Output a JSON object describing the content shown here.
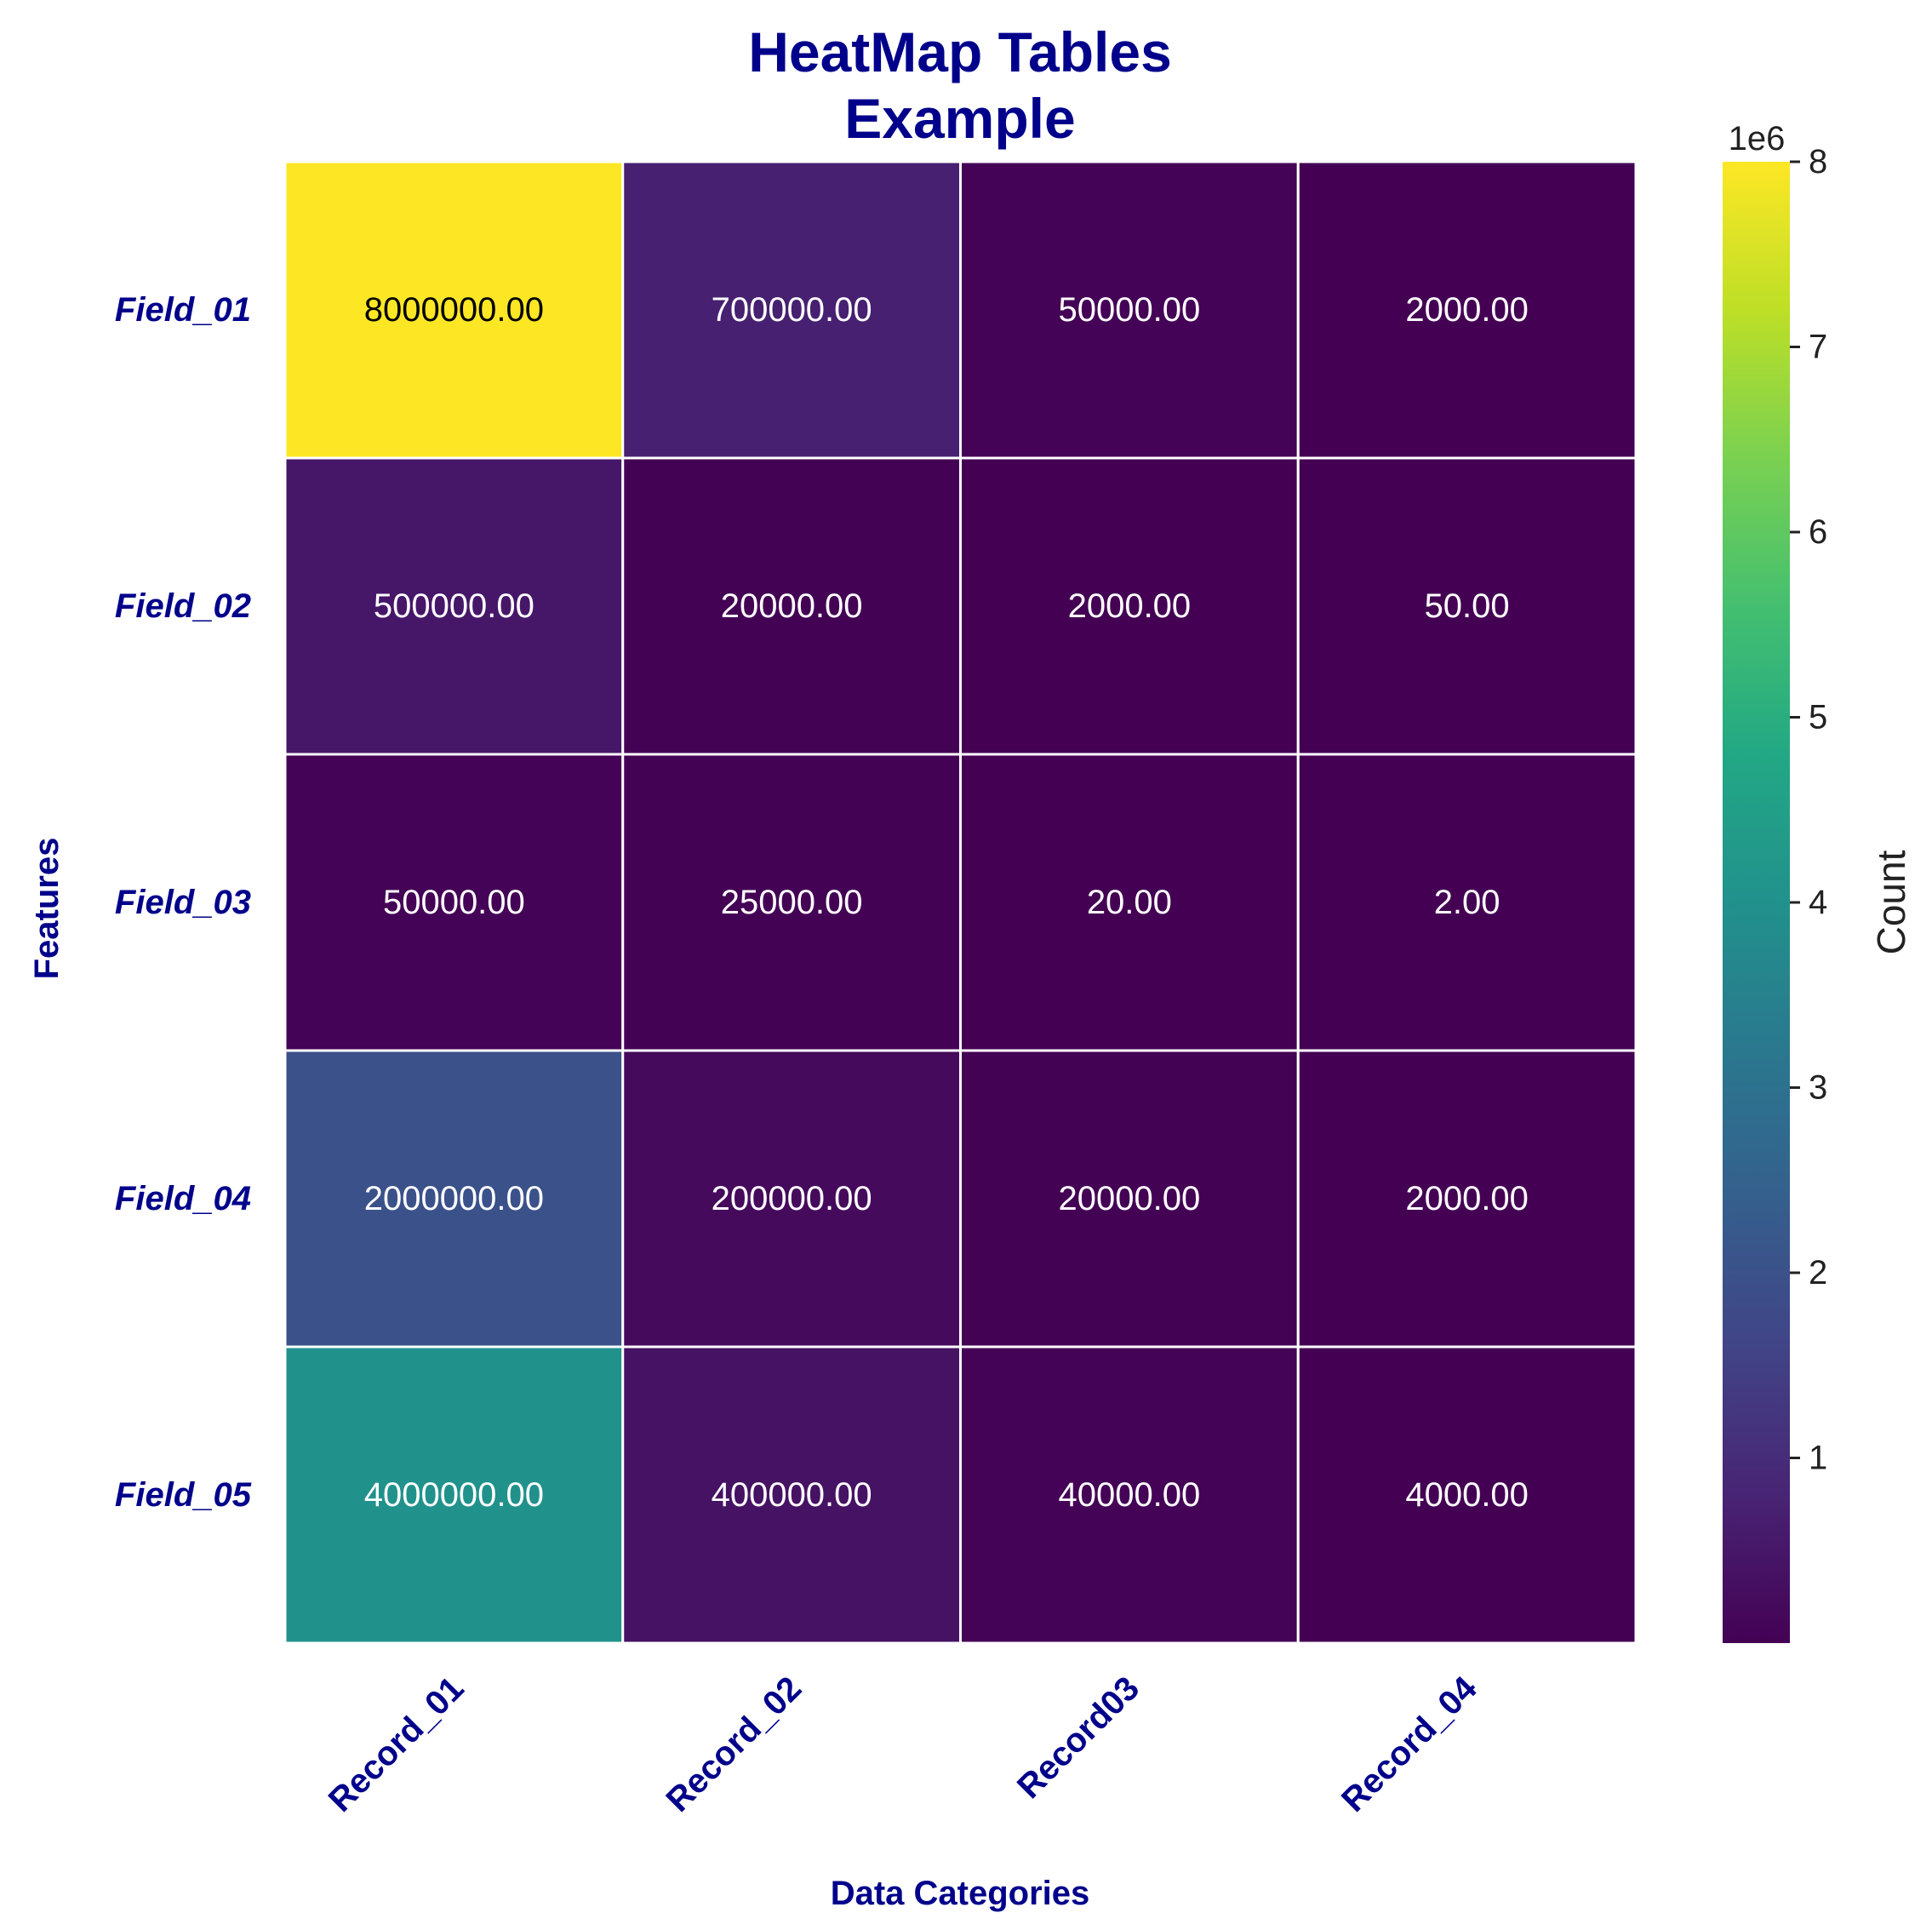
{
  "chart_data": {
    "type": "heatmap",
    "title": [
      "HeatMap Tables",
      "Example"
    ],
    "xlabel": "Data Categories",
    "ylabel": "Features",
    "columns": [
      "Record_01",
      "Record_02",
      "Record03",
      "Record_04"
    ],
    "rows": [
      "Field_01",
      "Field_02",
      "Field_03",
      "Field_04",
      "Field_05"
    ],
    "values": [
      [
        8000000,
        700000,
        50000,
        2000
      ],
      [
        500000,
        20000,
        2000,
        50
      ],
      [
        50000,
        25000,
        20,
        2
      ],
      [
        2000000,
        200000,
        20000,
        2000
      ],
      [
        4000000,
        400000,
        40000,
        4000
      ]
    ],
    "cell_labels": [
      [
        "8000000.00",
        "700000.00",
        "50000.00",
        "2000.00"
      ],
      [
        "500000.00",
        "20000.00",
        "2000.00",
        "50.00"
      ],
      [
        "50000.00",
        "25000.00",
        "20.00",
        "2.00"
      ],
      [
        "2000000.00",
        "200000.00",
        "20000.00",
        "2000.00"
      ],
      [
        "4000000.00",
        "400000.00",
        "40000.00",
        "4000.00"
      ]
    ],
    "colormap": "viridis",
    "grid_line_color": "#ffffff",
    "colorbar": {
      "label": "Count",
      "range": [
        2,
        8000000
      ],
      "ticks": [
        1,
        2,
        3,
        4,
        5,
        6,
        7,
        8
      ],
      "multiplier": "1e6"
    },
    "text_color_dark": "#000000",
    "text_color_light": "#ffffff",
    "label_color": "#00008b"
  }
}
